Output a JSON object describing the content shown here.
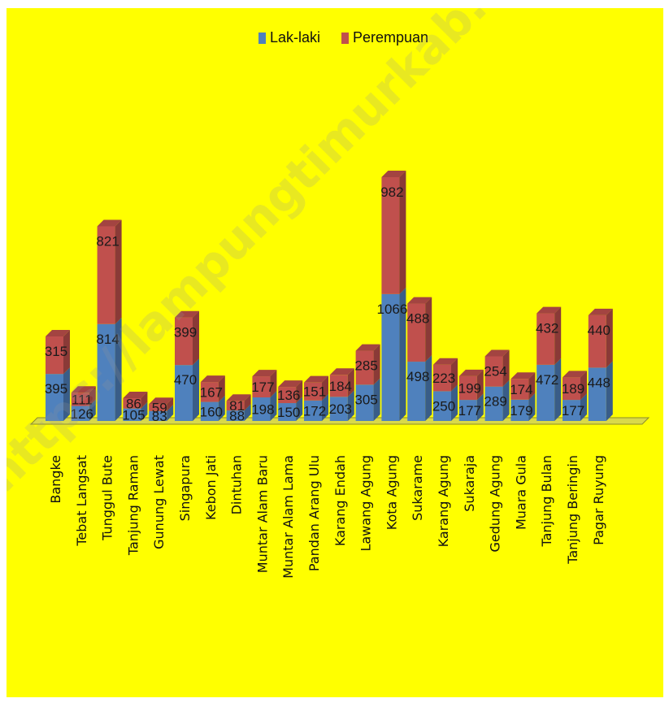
{
  "chart_data": {
    "type": "bar",
    "stacked": true,
    "title": "",
    "xlabel": "",
    "ylabel": "",
    "legend_position": "top-center",
    "categories": [
      "Bangke",
      "Tebat Langsat",
      "Tunggul Bute",
      "Tanjung Raman",
      "Gunung Lewat",
      "Singapura",
      "Kebon Jati",
      "Dintuhan",
      "Muntar Alam Baru",
      "Muntar Alam Lama",
      "Pandan Arang Ulu",
      "Karang Endah",
      "Lawang Agung",
      "Kota Agung",
      "Sukarame",
      "Karang Agung",
      "Sukaraja",
      "Gedung Agung",
      "Muara Gula",
      "Tanjung Bulan",
      "Tanjung Beringin",
      "Pagar Ruyung"
    ],
    "series": [
      {
        "name": "Lak-laki",
        "color": "#4f81bd",
        "values": [
          395,
          126,
          814,
          105,
          83,
          470,
          160,
          88,
          198,
          150,
          172,
          203,
          305,
          1066,
          498,
          250,
          177,
          289,
          179,
          472,
          177,
          448
        ]
      },
      {
        "name": "Perempuan",
        "color": "#c0504d",
        "values": [
          315,
          111,
          821,
          86,
          59,
          399,
          167,
          81,
          177,
          136,
          151,
          184,
          285,
          982,
          488,
          223,
          199,
          254,
          174,
          432,
          189,
          440
        ]
      }
    ],
    "ylim": [
      0,
      2200
    ],
    "grid": false
  },
  "watermark": "https://lampungtimurkab.bps.go.id"
}
